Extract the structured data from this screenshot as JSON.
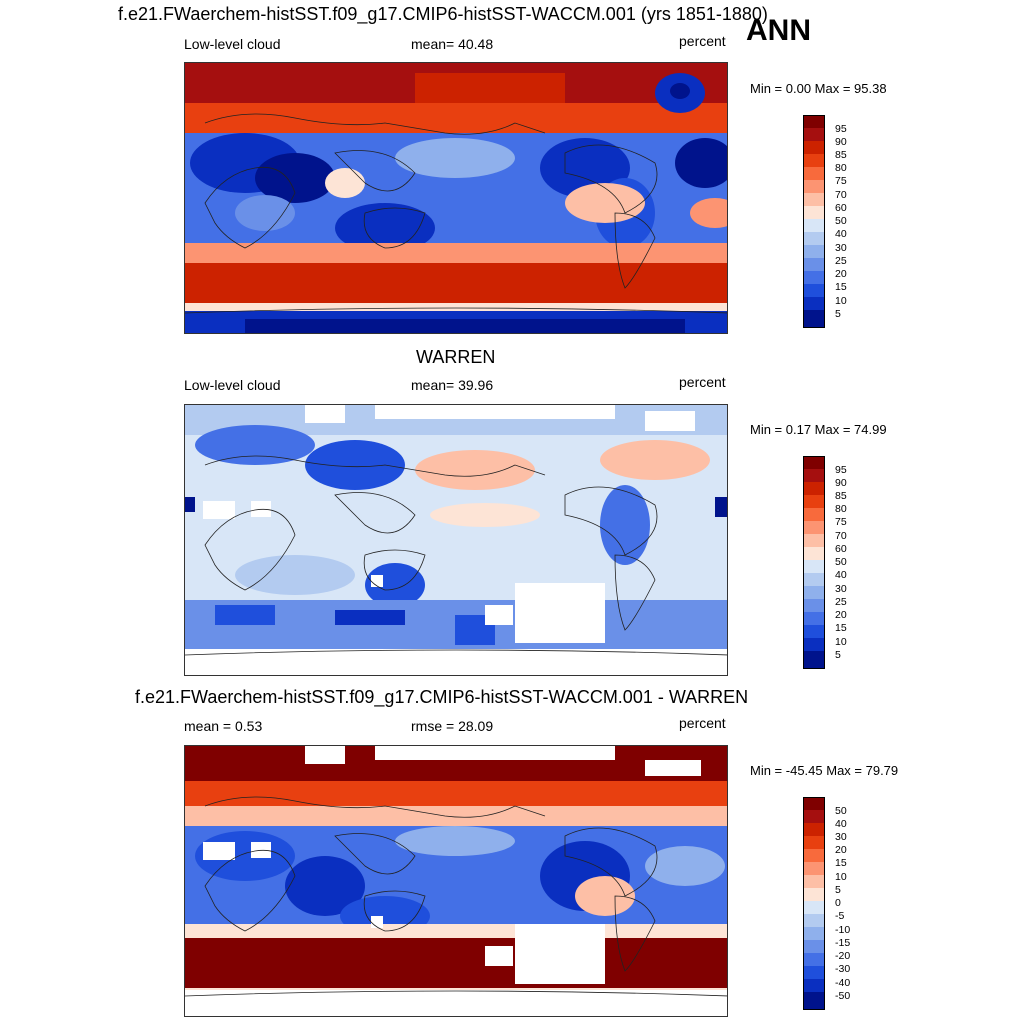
{
  "annotation": "ANN",
  "panels": [
    {
      "title": "f.e21.FWaerchem-histSST.f09_g17.CMIP6-histSST-WACCM.001 (yrs 1851-1880)",
      "left_label": "Low-level cloud",
      "center_label": "mean=  40.48",
      "right_label": "percent",
      "minmax": "Min =   0.00 Max =  95.38",
      "colorbar_labels": [
        "95",
        "90",
        "85",
        "80",
        "75",
        "70",
        "60",
        "50",
        "40",
        "30",
        "25",
        "20",
        "15",
        "10",
        "5"
      ]
    },
    {
      "title": "WARREN",
      "left_label": "Low-level cloud",
      "center_label": "mean=  39.96",
      "right_label": "percent",
      "minmax": "Min =   0.17 Max =  74.99",
      "colorbar_labels": [
        "95",
        "90",
        "85",
        "80",
        "75",
        "70",
        "60",
        "50",
        "40",
        "30",
        "25",
        "20",
        "15",
        "10",
        "5"
      ]
    },
    {
      "title": "f.e21.FWaerchem-histSST.f09_g17.CMIP6-histSST-WACCM.001 - WARREN",
      "left_label": "mean =   0.53",
      "center_label": "rmse =  28.09",
      "right_label": "percent",
      "minmax": "Min = -45.45 Max =  79.79",
      "colorbar_labels": [
        "50",
        "40",
        "30",
        "20",
        "15",
        "10",
        "5",
        "0",
        "-5",
        "-10",
        "-15",
        "-20",
        "-30",
        "-40",
        "-50"
      ]
    }
  ],
  "colors": {
    "colorbar": [
      "#7f0000",
      "#a50f0f",
      "#cc2200",
      "#e84010",
      "#f86a3c",
      "#fc9472",
      "#fdbfa6",
      "#fde4d6",
      "#d8e6f7",
      "#b3cbf0",
      "#8fb0ec",
      "#6a90e8",
      "#4470e6",
      "#1f4fdc",
      "#0a2fc0",
      "#00138c"
    ],
    "land_outline": "#222222",
    "missing": "#ffffff"
  }
}
